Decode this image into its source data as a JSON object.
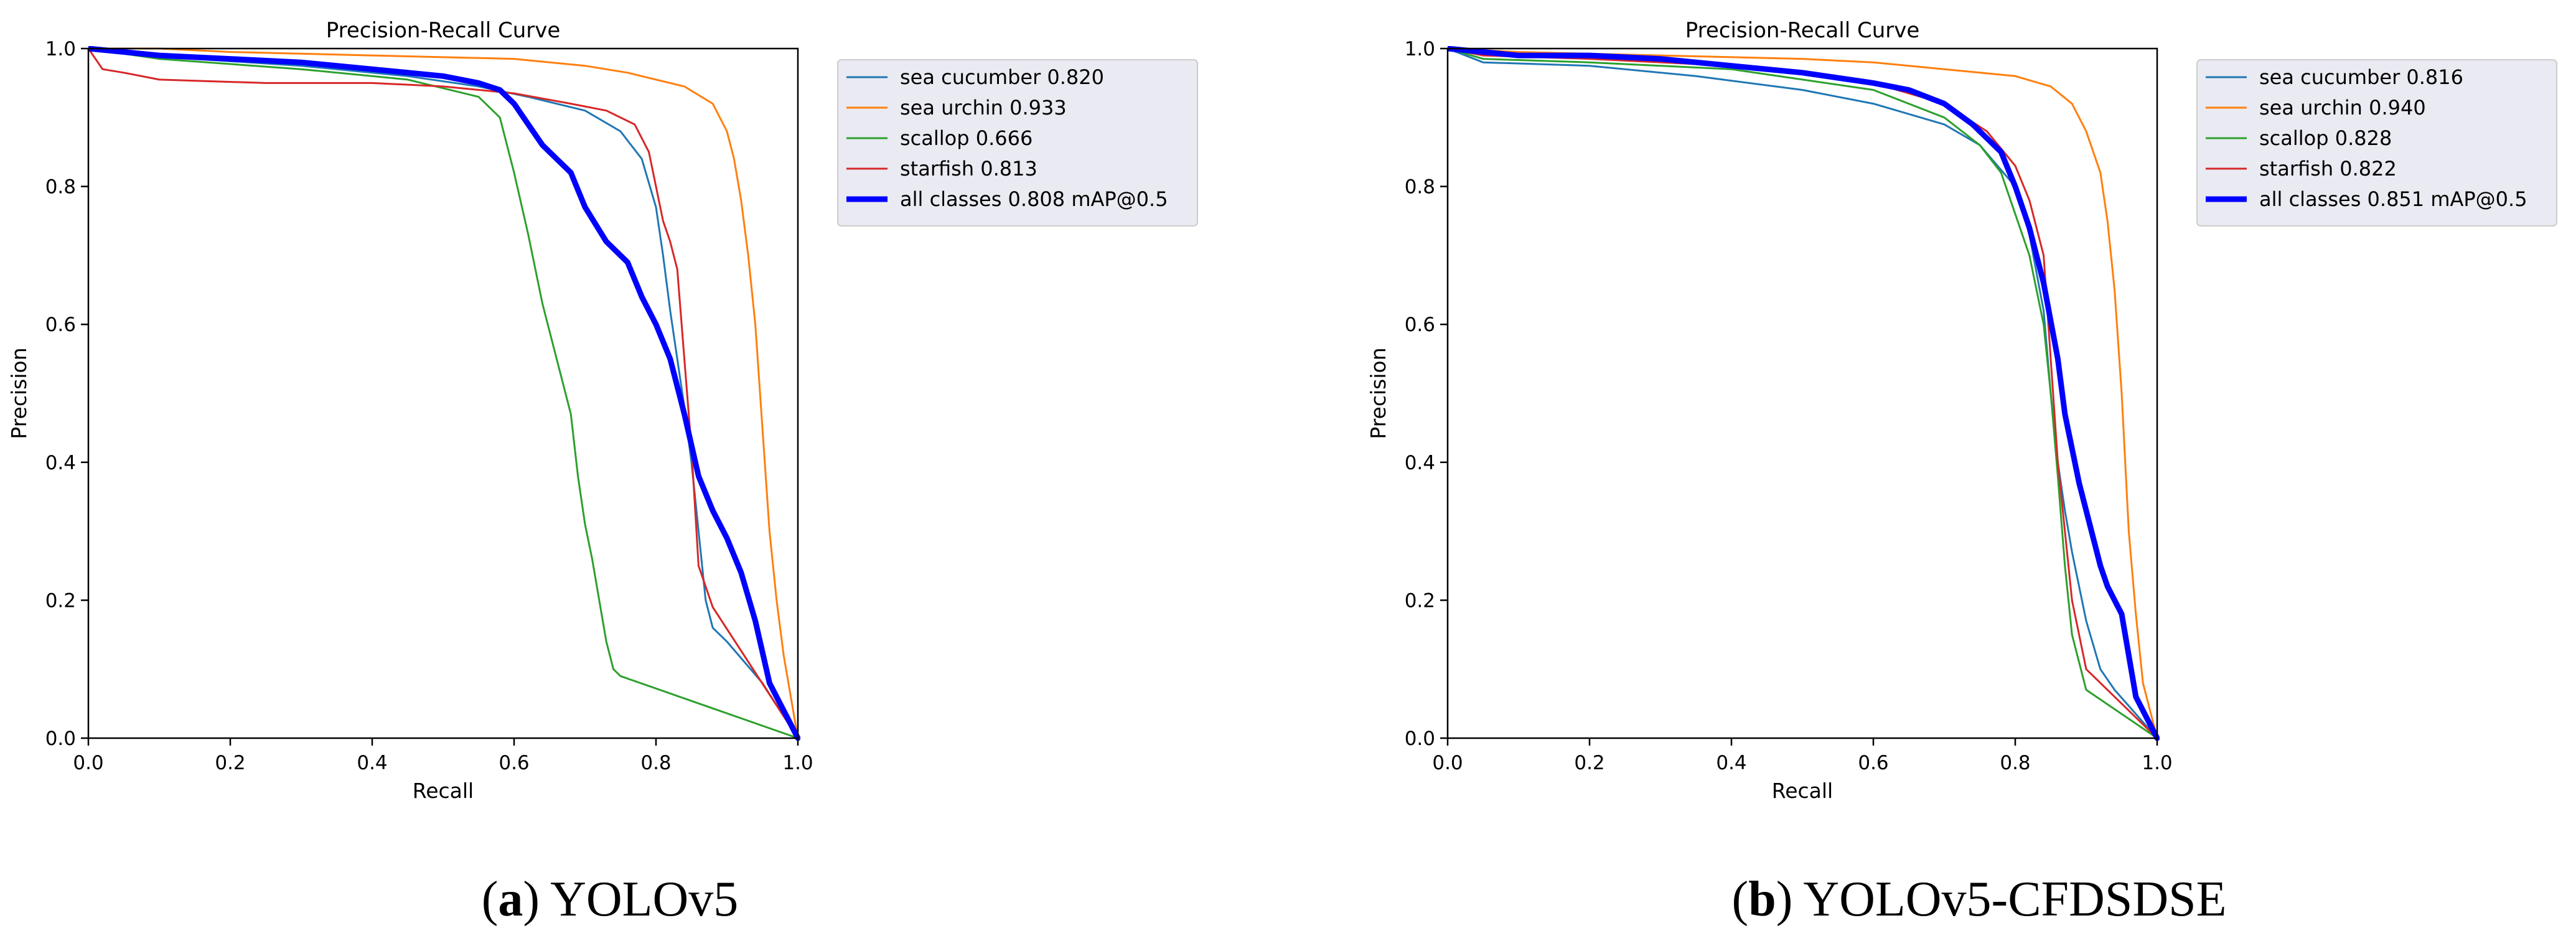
{
  "colors": {
    "sea_cucumber": "#1f77b4",
    "sea_urchin": "#ff7f0e",
    "scallop": "#2ca02c",
    "starfish": "#d62728",
    "all_classes": "#0000ff"
  },
  "captions": [
    {
      "letter": "a",
      "text": "YOLOv5"
    },
    {
      "letter": "b",
      "text": "YOLOv5-CFDSDSE"
    }
  ],
  "chart_data": [
    {
      "type": "line",
      "title": "Precision-Recall Curve",
      "xlabel": "Recall",
      "ylabel": "Precision",
      "xlim": [
        0,
        1
      ],
      "ylim": [
        0,
        1
      ],
      "xticks": [
        "0.0",
        "0.2",
        "0.4",
        "0.6",
        "0.8",
        "1.0"
      ],
      "yticks": [
        "0.0",
        "0.2",
        "0.4",
        "0.6",
        "0.8",
        "1.0"
      ],
      "legend_position": "outside-top-right",
      "grid": false,
      "series": [
        {
          "name": "sea cucumber 0.820",
          "color_key": "sea_cucumber",
          "x": [
            0,
            0.05,
            0.15,
            0.3,
            0.45,
            0.55,
            0.62,
            0.7,
            0.75,
            0.78,
            0.8,
            0.81,
            0.82,
            0.83,
            0.84,
            0.85,
            0.86,
            0.87,
            0.88,
            0.9,
            0.95,
            1.0
          ],
          "y": [
            1.0,
            0.995,
            0.985,
            0.975,
            0.96,
            0.945,
            0.93,
            0.91,
            0.88,
            0.84,
            0.77,
            0.7,
            0.62,
            0.55,
            0.48,
            0.4,
            0.3,
            0.2,
            0.16,
            0.14,
            0.08,
            0.0
          ]
        },
        {
          "name": "sea urchin 0.933",
          "color_key": "sea_urchin",
          "x": [
            0,
            0.1,
            0.2,
            0.4,
            0.6,
            0.7,
            0.76,
            0.8,
            0.84,
            0.88,
            0.9,
            0.91,
            0.92,
            0.93,
            0.94,
            0.95,
            0.96,
            0.97,
            0.98,
            1.0
          ],
          "y": [
            1.0,
            1.0,
            0.995,
            0.99,
            0.985,
            0.975,
            0.965,
            0.955,
            0.945,
            0.92,
            0.88,
            0.84,
            0.78,
            0.7,
            0.6,
            0.45,
            0.3,
            0.2,
            0.12,
            0.0
          ]
        },
        {
          "name": "scallop 0.666",
          "color_key": "scallop",
          "x": [
            0,
            0.1,
            0.3,
            0.45,
            0.55,
            0.58,
            0.6,
            0.62,
            0.64,
            0.66,
            0.68,
            0.69,
            0.7,
            0.71,
            0.72,
            0.73,
            0.74,
            0.75,
            1.0
          ],
          "y": [
            1.0,
            0.985,
            0.97,
            0.955,
            0.93,
            0.9,
            0.82,
            0.73,
            0.63,
            0.55,
            0.47,
            0.38,
            0.31,
            0.26,
            0.2,
            0.14,
            0.1,
            0.09,
            0.0
          ]
        },
        {
          "name": "starfish 0.813",
          "color_key": "starfish",
          "x": [
            0,
            0.02,
            0.05,
            0.1,
            0.25,
            0.4,
            0.5,
            0.6,
            0.68,
            0.73,
            0.77,
            0.79,
            0.8,
            0.81,
            0.82,
            0.83,
            0.84,
            0.85,
            0.86,
            0.88,
            1.0
          ],
          "y": [
            1.0,
            0.97,
            0.965,
            0.955,
            0.95,
            0.95,
            0.945,
            0.935,
            0.92,
            0.91,
            0.89,
            0.85,
            0.8,
            0.75,
            0.72,
            0.68,
            0.55,
            0.42,
            0.25,
            0.19,
            0.0
          ]
        },
        {
          "name": "all classes 0.808 mAP@0.5",
          "color_key": "all_classes",
          "thick": true,
          "x": [
            0,
            0.1,
            0.2,
            0.3,
            0.4,
            0.5,
            0.55,
            0.58,
            0.6,
            0.62,
            0.64,
            0.66,
            0.68,
            0.7,
            0.73,
            0.76,
            0.78,
            0.8,
            0.82,
            0.84,
            0.86,
            0.88,
            0.9,
            0.92,
            0.94,
            0.96,
            1.0
          ],
          "y": [
            1.0,
            0.99,
            0.985,
            0.98,
            0.97,
            0.96,
            0.95,
            0.94,
            0.92,
            0.89,
            0.86,
            0.84,
            0.82,
            0.77,
            0.72,
            0.69,
            0.64,
            0.6,
            0.55,
            0.47,
            0.38,
            0.33,
            0.29,
            0.24,
            0.17,
            0.08,
            0.0
          ]
        }
      ]
    },
    {
      "type": "line",
      "title": "Precision-Recall Curve",
      "xlabel": "Recall",
      "ylabel": "Precision",
      "xlim": [
        0,
        1
      ],
      "ylim": [
        0,
        1
      ],
      "xticks": [
        "0.0",
        "0.2",
        "0.4",
        "0.6",
        "0.8",
        "1.0"
      ],
      "yticks": [
        "0.0",
        "0.2",
        "0.4",
        "0.6",
        "0.8",
        "1.0"
      ],
      "legend_position": "outside-top-right",
      "grid": false,
      "series": [
        {
          "name": "sea cucumber 0.816",
          "color_key": "sea_cucumber",
          "x": [
            0,
            0.05,
            0.2,
            0.35,
            0.5,
            0.6,
            0.7,
            0.75,
            0.8,
            0.82,
            0.84,
            0.85,
            0.86,
            0.87,
            0.88,
            0.89,
            0.9,
            0.92,
            0.94,
            1.0
          ],
          "y": [
            1.0,
            0.98,
            0.975,
            0.96,
            0.94,
            0.92,
            0.89,
            0.86,
            0.8,
            0.73,
            0.62,
            0.5,
            0.4,
            0.33,
            0.27,
            0.22,
            0.17,
            0.1,
            0.07,
            0.0
          ]
        },
        {
          "name": "sea urchin 0.940",
          "color_key": "sea_urchin",
          "x": [
            0,
            0.1,
            0.3,
            0.5,
            0.6,
            0.7,
            0.8,
            0.85,
            0.88,
            0.9,
            0.92,
            0.93,
            0.94,
            0.95,
            0.96,
            0.97,
            0.98,
            1.0
          ],
          "y": [
            1.0,
            0.995,
            0.99,
            0.985,
            0.98,
            0.97,
            0.96,
            0.945,
            0.92,
            0.88,
            0.82,
            0.75,
            0.65,
            0.5,
            0.3,
            0.18,
            0.08,
            0.0
          ]
        },
        {
          "name": "scallop 0.828",
          "color_key": "scallop",
          "x": [
            0,
            0.05,
            0.2,
            0.4,
            0.6,
            0.7,
            0.75,
            0.78,
            0.8,
            0.82,
            0.84,
            0.85,
            0.86,
            0.87,
            0.88,
            0.9,
            1.0
          ],
          "y": [
            1.0,
            0.985,
            0.98,
            0.97,
            0.94,
            0.9,
            0.86,
            0.82,
            0.76,
            0.7,
            0.6,
            0.5,
            0.38,
            0.25,
            0.15,
            0.07,
            0.0
          ]
        },
        {
          "name": "starfish 0.822",
          "color_key": "starfish",
          "x": [
            0,
            0.05,
            0.2,
            0.4,
            0.6,
            0.7,
            0.76,
            0.8,
            0.82,
            0.84,
            0.85,
            0.86,
            0.87,
            0.88,
            0.9,
            0.95,
            1.0
          ],
          "y": [
            1.0,
            0.99,
            0.985,
            0.975,
            0.95,
            0.92,
            0.88,
            0.83,
            0.78,
            0.7,
            0.55,
            0.4,
            0.3,
            0.2,
            0.1,
            0.05,
            0.0
          ]
        },
        {
          "name": "all classes 0.851 mAP@0.5",
          "color_key": "all_classes",
          "thick": true,
          "x": [
            0,
            0.1,
            0.2,
            0.3,
            0.4,
            0.5,
            0.6,
            0.65,
            0.7,
            0.74,
            0.78,
            0.8,
            0.82,
            0.84,
            0.86,
            0.87,
            0.88,
            0.89,
            0.9,
            0.91,
            0.92,
            0.93,
            0.95,
            0.96,
            0.97,
            1.0
          ],
          "y": [
            1.0,
            0.99,
            0.99,
            0.985,
            0.975,
            0.965,
            0.95,
            0.94,
            0.92,
            0.89,
            0.85,
            0.8,
            0.74,
            0.66,
            0.55,
            0.47,
            0.42,
            0.37,
            0.33,
            0.29,
            0.25,
            0.22,
            0.18,
            0.12,
            0.06,
            0.0
          ]
        }
      ]
    }
  ]
}
